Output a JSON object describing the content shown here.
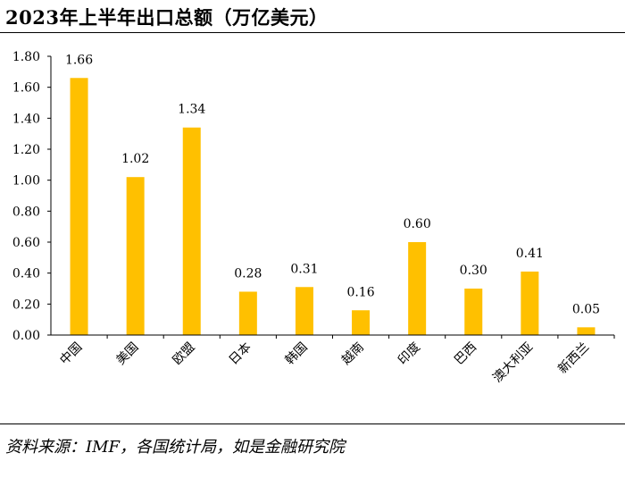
{
  "title": "2023年上半年出口总额（万亿美元）",
  "source": "资料来源：IMF，各国统计局，如是金融研究院",
  "chart_data": {
    "type": "bar",
    "categories": [
      "中国",
      "美国",
      "欧盟",
      "日本",
      "韩国",
      "越南",
      "印度",
      "巴西",
      "澳大利亚",
      "新西兰"
    ],
    "values": [
      1.66,
      1.02,
      1.34,
      0.28,
      0.31,
      0.16,
      0.6,
      0.3,
      0.41,
      0.05
    ],
    "data_labels": [
      "1.66",
      "1.02",
      "1.34",
      "0.28",
      "0.31",
      "0.16",
      "0.60",
      "0.30",
      "0.41",
      "0.05"
    ],
    "ylim": [
      0,
      1.8
    ],
    "yticks": [
      "0.00",
      "0.20",
      "0.40",
      "0.60",
      "0.80",
      "1.00",
      "1.20",
      "1.40",
      "1.60",
      "1.80"
    ],
    "grid": false,
    "legend": "none",
    "bar_color": "#FFC000",
    "axis_color": "#000000"
  }
}
